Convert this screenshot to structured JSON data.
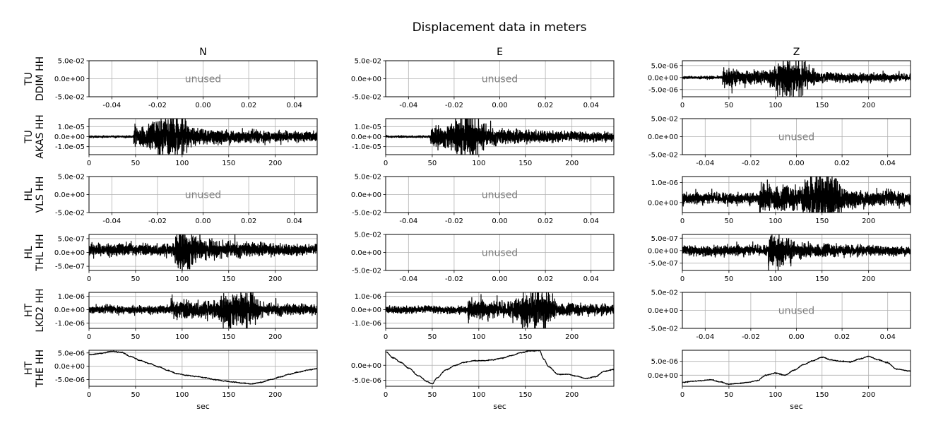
{
  "chart_data": {
    "type": "line",
    "title": "Displacement data in meters",
    "columns": [
      "N",
      "E",
      "Z"
    ],
    "xlabel": "sec",
    "unused_label": "unused",
    "unused_xticks": [
      "-0.04",
      "-0.02",
      "0.00",
      "0.02",
      "0.04"
    ],
    "unused_yticks": [
      "5.0e-02",
      "0.0e+00",
      "-5.0e-02"
    ],
    "data_xticks": [
      "0",
      "50",
      "100",
      "150",
      "200"
    ],
    "xlim": [
      0,
      245
    ],
    "rows": [
      {
        "network": "TU",
        "station": "DDIM HH",
        "panels": [
          {
            "component": "N",
            "used": false
          },
          {
            "component": "E",
            "used": false
          },
          {
            "component": "Z",
            "used": true,
            "ylim": [
              -8e-06,
              7e-06
            ],
            "yticks": [
              5e-06,
              0,
              -5e-06
            ],
            "yticklabels": [
              "5.0e-06",
              "0.0e+00",
              "-5.0e-06"
            ],
            "onset": 43,
            "amplitude": 5.5e-06,
            "pre_amplitude": 4e-07,
            "peak_time": 118,
            "style": "noise"
          }
        ]
      },
      {
        "network": "TU",
        "station": "AKAS HH",
        "panels": [
          {
            "component": "N",
            "used": true,
            "ylim": [
              -1.8e-05,
              1.8e-05
            ],
            "yticks": [
              1e-05,
              0,
              -1e-05
            ],
            "yticklabels": [
              "1.0e-05",
              "0.0e+00",
              "-1.0e-05"
            ],
            "onset": 48,
            "amplitude": 1.6e-05,
            "pre_amplitude": 7e-07,
            "peak_time": 88,
            "style": "noise"
          },
          {
            "component": "E",
            "used": true,
            "ylim": [
              -1.8e-05,
              1.8e-05
            ],
            "yticks": [
              1e-05,
              0,
              -1e-05
            ],
            "yticklabels": [
              "1.0e-05",
              "0.0e+00",
              "-1.0e-05"
            ],
            "onset": 48,
            "amplitude": 1.6e-05,
            "pre_amplitude": 7e-07,
            "peak_time": 86,
            "style": "noise"
          },
          {
            "component": "Z",
            "used": false
          }
        ]
      },
      {
        "network": "HL",
        "station": "VLS HH",
        "panels": [
          {
            "component": "N",
            "used": false
          },
          {
            "component": "E",
            "used": false
          },
          {
            "component": "Z",
            "used": true,
            "ylim": [
              -5e-07,
              1.3e-06
            ],
            "yticks": [
              1e-06,
              0
            ],
            "yticklabels": [
              "1.0e-06",
              "0.0e+00"
            ],
            "onset": 83,
            "amplitude": 1e-06,
            "pre_amplitude": 2e-07,
            "peak_time": 150,
            "style": "noise",
            "offset": 2e-07
          }
        ]
      },
      {
        "network": "HL",
        "station": "THL HH",
        "panels": [
          {
            "component": "N",
            "used": true,
            "ylim": [
              -6.5e-07,
              6.5e-07
            ],
            "yticks": [
              5e-07,
              0,
              -5e-07
            ],
            "yticklabels": [
              "5.0e-07",
              "0.0e+00",
              "-5.0e-07"
            ],
            "onset": 92,
            "amplitude": 5.5e-07,
            "pre_amplitude": 1.5e-07,
            "peak_time": 100,
            "style": "noise",
            "offset": 1e-07
          },
          {
            "component": "E",
            "used": false
          },
          {
            "component": "Z",
            "used": true,
            "ylim": [
              -8e-07,
              6.5e-07
            ],
            "yticks": [
              5e-07,
              0,
              -5e-07
            ],
            "yticklabels": [
              "5.0e-07",
              "0.0e+00",
              "-5.0e-07"
            ],
            "onset": 92,
            "amplitude": 5e-07,
            "pre_amplitude": 1.5e-07,
            "peak_time": 98,
            "style": "noise"
          }
        ]
      },
      {
        "network": "HT",
        "station": "LKD2 HH",
        "panels": [
          {
            "component": "N",
            "used": true,
            "ylim": [
              -1.4e-06,
              1.3e-06
            ],
            "yticks": [
              1e-06,
              0,
              -1e-06
            ],
            "yticklabels": [
              "1.0e-06",
              "0.0e+00",
              "-1.0e-06"
            ],
            "onset": 88,
            "amplitude": 1.1e-06,
            "pre_amplitude": 2e-07,
            "peak_time": 160,
            "style": "noise"
          },
          {
            "component": "E",
            "used": true,
            "ylim": [
              -1.4e-06,
              1.3e-06
            ],
            "yticks": [
              1e-06,
              0,
              -1e-06
            ],
            "yticklabels": [
              "1.0e-06",
              "0.0e+00",
              "-1.0e-06"
            ],
            "onset": 88,
            "amplitude": 1.1e-06,
            "pre_amplitude": 2e-07,
            "peak_time": 160,
            "style": "noise"
          },
          {
            "component": "Z",
            "used": false
          }
        ]
      },
      {
        "network": "HT",
        "station": "THE HH",
        "panels": [
          {
            "component": "N",
            "used": true,
            "ylim": [
              -7.5e-06,
              6e-06
            ],
            "yticks": [
              5e-06,
              0,
              -5e-06
            ],
            "yticklabels": [
              "5.0e-06",
              "0.0e+00",
              "-5.0e-06"
            ],
            "style": "wave",
            "wave": {
              "x": [
                0,
                12,
                25,
                35,
                45,
                55,
                65,
                75,
                85,
                95,
                105,
                115,
                125,
                135,
                145,
                155,
                165,
                175,
                185,
                195,
                205,
                215,
                225,
                235,
                245
              ],
              "y": [
                4.3e-06,
                4.8e-06,
                5.6e-06,
                5.2e-06,
                3.6e-06,
                2.2e-06,
                1e-06,
                -2e-07,
                -1.6e-06,
                -2.8e-06,
                -3.4e-06,
                -3.8e-06,
                -4.3e-06,
                -5e-06,
                -5.5e-06,
                -5.9e-06,
                -6.3e-06,
                -6.6e-06,
                -6e-06,
                -5e-06,
                -4e-06,
                -3e-06,
                -2.2e-06,
                -1.4e-06,
                -9e-07
              ]
            }
          },
          {
            "component": "E",
            "used": true,
            "ylim": [
              -7e-06,
              5e-06
            ],
            "yticks": [
              0,
              -5e-06
            ],
            "yticklabels": [
              "0.0e+00",
              "-5.0e-06"
            ],
            "style": "wave",
            "wave": {
              "x": [
                0,
                8,
                16,
                25,
                35,
                45,
                50,
                55,
                65,
                75,
                85,
                95,
                105,
                115,
                125,
                135,
                145,
                155,
                165,
                170,
                175,
                185,
                195,
                205,
                215,
                225,
                235,
                245
              ],
              "y": [
                4.5e-06,
                2.5e-06,
                1e-06,
                -1e-06,
                -3.5e-06,
                -5.5e-06,
                -6.2e-06,
                -4.2e-06,
                -1.5e-06,
                0,
                1e-06,
                1.5e-06,
                1.5e-06,
                1.8e-06,
                2.4e-06,
                3.2e-06,
                4.2e-06,
                4.8e-06,
                4.9e-06,
                2e-06,
                -5e-07,
                -3e-06,
                -3e-06,
                -3.6e-06,
                -4.4e-06,
                -3.8e-06,
                -2e-06,
                -1.4e-06
              ]
            }
          },
          {
            "component": "Z",
            "used": true,
            "ylim": [
              -4e-06,
              9e-06
            ],
            "yticks": [
              5e-06,
              0
            ],
            "yticklabels": [
              "5.0e-06",
              "0.0e+00"
            ],
            "style": "wave",
            "wave": {
              "x": [
                0,
                10,
                20,
                30,
                40,
                50,
                60,
                70,
                80,
                90,
                100,
                110,
                120,
                130,
                140,
                150,
                160,
                170,
                180,
                190,
                200,
                210,
                220,
                230,
                245
              ],
              "y": [
                -2.6e-06,
                -2.2e-06,
                -2e-06,
                -1.6e-06,
                -2.4e-06,
                -3.2e-06,
                -3e-06,
                -2.6e-06,
                -2e-06,
                0,
                8e-07,
                0,
                1.8e-06,
                3.8e-06,
                5.2e-06,
                6.5e-06,
                5.5e-06,
                5e-06,
                4.8e-06,
                5.8e-06,
                6.8e-06,
                5.6e-06,
                4.5e-06,
                2.2e-06,
                1.5e-06
              ]
            }
          }
        ]
      }
    ]
  }
}
